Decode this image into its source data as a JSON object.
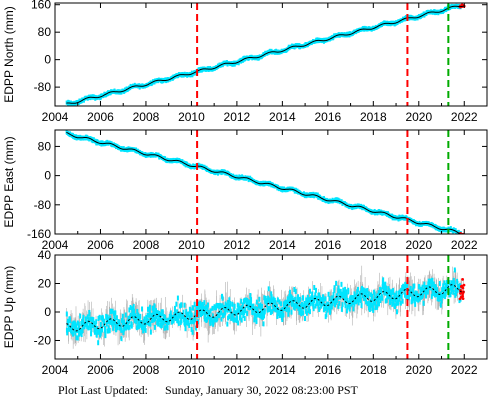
{
  "footer": {
    "label": "Plot Last Updated:",
    "value": "Sunday, January 30, 2022 08:23:00 PST"
  },
  "colors": {
    "data_points": "#00e5ff",
    "error_bars": "#b0b0b0",
    "model_line": "#000000",
    "offset_lines": "#ff0000",
    "event_line": "#00aa00",
    "recent_points": "#ff0000"
  },
  "chart_data": [
    {
      "type": "scatter",
      "ylabel": "EDPP North (mm)",
      "xlim": [
        2004,
        2023
      ],
      "ylim": [
        -135,
        165
      ],
      "xticks": [
        2004,
        2006,
        2008,
        2010,
        2012,
        2014,
        2016,
        2018,
        2020,
        2022
      ],
      "yticks": [
        -80,
        0,
        80,
        160
      ],
      "trend": {
        "start": [
          2004.5,
          -130
        ],
        "end": [
          2022.0,
          160
        ]
      },
      "vertical_lines": [
        {
          "x": 2010.25,
          "style": "red-dashed"
        },
        {
          "x": 2019.5,
          "style": "red-dashed"
        },
        {
          "x": 2021.3,
          "style": "green-dashed"
        }
      ]
    },
    {
      "type": "scatter",
      "ylabel": "EDPP East (mm)",
      "xlim": [
        2004,
        2023
      ],
      "ylim": [
        -160,
        125
      ],
      "xticks": [
        2004,
        2006,
        2008,
        2010,
        2012,
        2014,
        2016,
        2018,
        2020,
        2022
      ],
      "yticks": [
        -160,
        -80,
        0,
        80
      ],
      "trend": {
        "start": [
          2004.5,
          115
        ],
        "end": [
          2022.0,
          -160
        ]
      },
      "vertical_lines": [
        {
          "x": 2010.25,
          "style": "red-dashed"
        },
        {
          "x": 2019.5,
          "style": "red-dashed"
        },
        {
          "x": 2021.3,
          "style": "green-dashed"
        }
      ]
    },
    {
      "type": "scatter",
      "ylabel": "EDPP Up (mm)",
      "xlim": [
        2004,
        2023
      ],
      "ylim": [
        -33,
        40
      ],
      "xticks": [
        2004,
        2006,
        2008,
        2010,
        2012,
        2014,
        2016,
        2018,
        2020,
        2022
      ],
      "yticks": [
        -20,
        0,
        20,
        40
      ],
      "trend": {
        "start": [
          2004.5,
          -11
        ],
        "end": [
          2022.0,
          17
        ]
      },
      "vertical_lines": [
        {
          "x": 2010.25,
          "style": "red-dashed"
        },
        {
          "x": 2019.5,
          "style": "red-dashed"
        },
        {
          "x": 2021.3,
          "style": "green-dashed"
        }
      ]
    }
  ]
}
